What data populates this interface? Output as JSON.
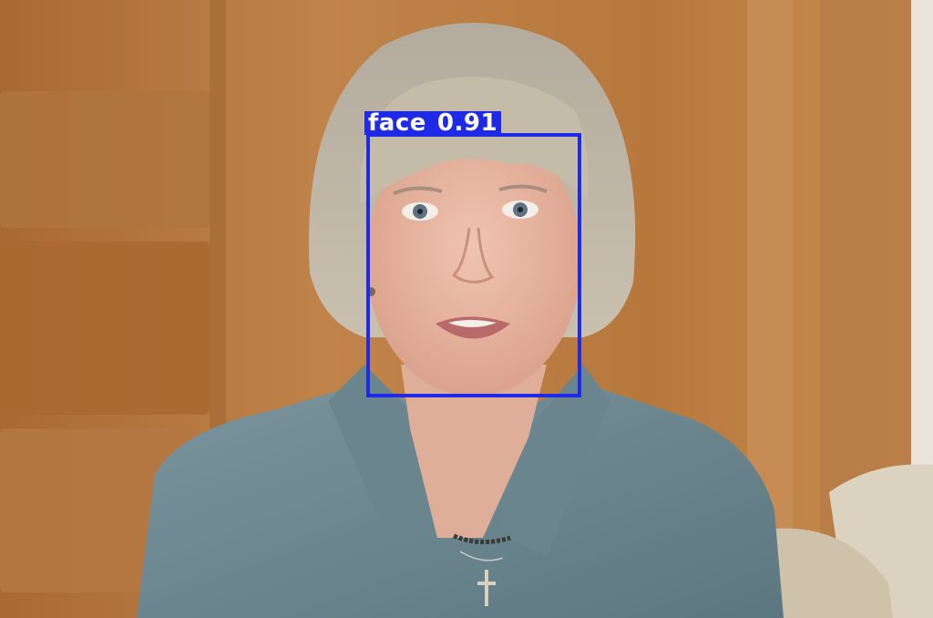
{
  "detections": [
    {
      "class_name": "face",
      "confidence": "0.91",
      "box_color": "#1f2ae8"
    }
  ],
  "palette": {
    "wood_light": "#c98a4a",
    "wood_dark": "#9a5f2b",
    "jacket": "#6f8a94",
    "hair": "#b8b0a0",
    "skin": "#e8b8a4"
  }
}
